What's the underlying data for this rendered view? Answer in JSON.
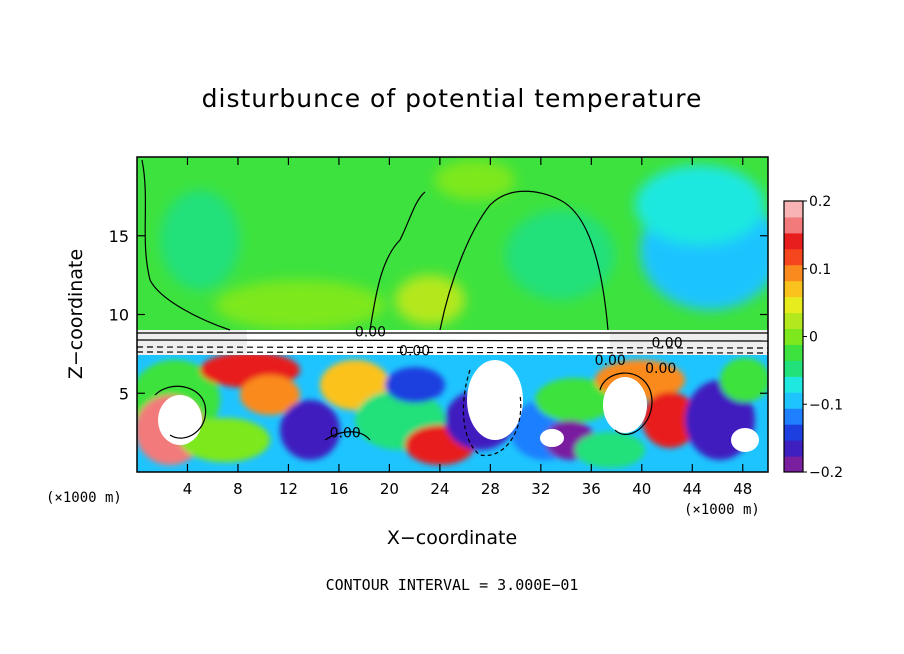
{
  "chart_data": {
    "type": "heatmap",
    "title": "disturbunce of potential temperature",
    "xlabel": "X−coordinate",
    "ylabel": "Z−coordinate",
    "x_unit": "(×1000 m)",
    "footer": "CONTOUR INTERVAL = 3.000E−01",
    "xlim": [
      0,
      50
    ],
    "ylim": [
      0,
      20
    ],
    "x_ticks": [
      4,
      8,
      12,
      16,
      20,
      24,
      28,
      32,
      36,
      40,
      44,
      48
    ],
    "y_ticks": [
      5,
      10,
      15
    ],
    "colorbar": {
      "range": [
        -0.2,
        0.2
      ],
      "tick_values": [
        0.2,
        0.1,
        0,
        -0.1,
        -0.2
      ],
      "tick_labels": [
        "0.2",
        "0.1",
        "0",
        "−0.1",
        "−0.2"
      ],
      "colors": [
        "#7a1fa0",
        "#3f1fbf",
        "#1e3fe0",
        "#1e7fff",
        "#1ec4ff",
        "#1fe8e0",
        "#22e07a",
        "#3ee23e",
        "#7de81e",
        "#b4e81e",
        "#e6ec1e",
        "#fbc21e",
        "#fb8a1e",
        "#f6461e",
        "#e81e1e",
        "#f27a7a",
        "#f8b4b4"
      ]
    },
    "contour_labels": [
      {
        "text": "0.00",
        "x": 18.5,
        "y": 8.6
      },
      {
        "text": "0.00",
        "x": 22.0,
        "y": 7.4
      },
      {
        "text": "0.00",
        "x": 37.5,
        "y": 6.8
      },
      {
        "text": "0.00",
        "x": 41.5,
        "y": 6.3
      },
      {
        "text": "0.00",
        "x": 42.0,
        "y": 7.9
      },
      {
        "text": "0.00",
        "x": 16.5,
        "y": 2.2
      }
    ]
  }
}
